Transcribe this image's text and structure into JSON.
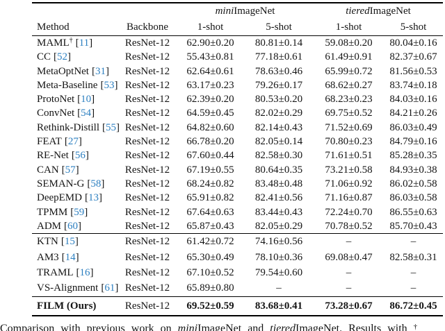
{
  "page": {
    "background": "#ffffff",
    "text_color": "#141414",
    "rule_color": "#000000",
    "cite_color": "#2c7fc0"
  },
  "table": {
    "group_headers": [
      {
        "italic": "mini",
        "rest": "ImageNet"
      },
      {
        "italic": "tiered",
        "rest": "ImageNet"
      }
    ],
    "columns": [
      "Method",
      "Backbone",
      "1-shot",
      "5-shot",
      "1-shot",
      "5-shot"
    ],
    "sections": [
      {
        "bold": false,
        "rows": [
          {
            "method": "MAML",
            "sup": "†",
            "cite": "11",
            "backbone": "ResNet-12",
            "values": [
              "62.90±0.20",
              "80.81±0.14",
              "59.08±0.20",
              "80.04±0.16"
            ]
          },
          {
            "method": "CC",
            "sup": "",
            "cite": "52",
            "backbone": "ResNet-12",
            "values": [
              "55.43±0.81",
              "77.18±0.61",
              "61.49±0.91",
              "82.37±0.67"
            ]
          },
          {
            "method": "MetaOptNet",
            "sup": "",
            "cite": "31",
            "backbone": "ResNet-12",
            "values": [
              "62.64±0.61",
              "78.63±0.46",
              "65.99±0.72",
              "81.56±0.53"
            ]
          },
          {
            "method": "Meta-Baseline",
            "sup": "",
            "cite": "53",
            "backbone": "ResNet-12",
            "values": [
              "63.17±0.23",
              "79.26±0.17",
              "68.62±0.27",
              "83.74±0.18"
            ]
          },
          {
            "method": "ProtoNet",
            "sup": "",
            "cite": "10",
            "backbone": "ResNet-12",
            "values": [
              "62.39±0.20",
              "80.53±0.20",
              "68.23±0.23",
              "84.03±0.16"
            ]
          },
          {
            "method": "ConvNet",
            "sup": "",
            "cite": "54",
            "backbone": "ResNet-12",
            "values": [
              "64.59±0.45",
              "82.02±0.29",
              "69.75±0.52",
              "84.21±0.26"
            ]
          },
          {
            "method": "Rethink-Distill",
            "sup": "",
            "cite": "55",
            "backbone": "ResNet-12",
            "values": [
              "64.82±0.60",
              "82.14±0.43",
              "71.52±0.69",
              "86.03±0.49"
            ]
          },
          {
            "method": "FEAT",
            "sup": "",
            "cite": "27",
            "backbone": "ResNet-12",
            "values": [
              "66.78±0.20",
              "82.05±0.14",
              "70.80±0.23",
              "84.79±0.16"
            ]
          },
          {
            "method": "RE-Net",
            "sup": "",
            "cite": "56",
            "backbone": "ResNet-12",
            "values": [
              "67.60±0.44",
              "82.58±0.30",
              "71.61±0.51",
              "85.28±0.35"
            ]
          },
          {
            "method": "CAN",
            "sup": "",
            "cite": "57",
            "backbone": "ResNet-12",
            "values": [
              "67.19±0.55",
              "80.64±0.35",
              "73.21±0.58",
              "84.93±0.38"
            ]
          },
          {
            "method": "SEMAN-G",
            "sup": "",
            "cite": "58",
            "backbone": "ResNet-12",
            "values": [
              "68.24±0.82",
              "83.48±0.48",
              "71.06±0.92",
              "86.02±0.58"
            ]
          },
          {
            "method": "DeepEMD",
            "sup": "",
            "cite": "13",
            "backbone": "ResNet-12",
            "values": [
              "65.91±0.82",
              "82.41±0.56",
              "71.16±0.87",
              "86.03±0.58"
            ]
          },
          {
            "method": "TPMM",
            "sup": "",
            "cite": "59",
            "backbone": "ResNet-12",
            "values": [
              "67.64±0.63",
              "83.44±0.43",
              "72.24±0.70",
              "86.55±0.63"
            ]
          },
          {
            "method": "ADM",
            "sup": "",
            "cite": "60",
            "backbone": "ResNet-12",
            "values": [
              "65.87±0.43",
              "82.05±0.29",
              "70.78±0.52",
              "85.70±0.43"
            ]
          }
        ]
      },
      {
        "bold": false,
        "rows": [
          {
            "method": "KTN",
            "sup": "",
            "cite": "15",
            "backbone": "ResNet-12",
            "values": [
              "61.42±0.72",
              "74.16±0.56",
              "–",
              "–"
            ]
          },
          {
            "method": "AM3",
            "sup": "",
            "cite": "14",
            "backbone": "ResNet-12",
            "values": [
              "65.30±0.49",
              "78.10±0.36",
              "69.08±0.47",
              "82.58±0.31"
            ]
          },
          {
            "method": "TRAML",
            "sup": "",
            "cite": "16",
            "backbone": "ResNet-12",
            "values": [
              "67.10±0.52",
              "79.54±0.60",
              "–",
              "–"
            ]
          },
          {
            "method": "VS-Alignment",
            "sup": "",
            "cite": "61",
            "backbone": "ResNet-12",
            "values": [
              "65.89±0.80",
              "–",
              "–",
              "–"
            ]
          }
        ]
      },
      {
        "bold": true,
        "rows": [
          {
            "method": "FILM (Ours)",
            "sup": "",
            "cite": "",
            "backbone": "ResNet-12",
            "values": [
              "69.52±0.59",
              "83.68±0.41",
              "73.28±0.67",
              "86.72±0.45"
            ]
          }
        ]
      }
    ]
  },
  "caption": {
    "part1": "Comparison with previous work on ",
    "italic1": "mini",
    "part2": "ImageNet and ",
    "italic2": "tiered",
    "part3": "ImageNet. Results with ",
    "sup": "†"
  }
}
